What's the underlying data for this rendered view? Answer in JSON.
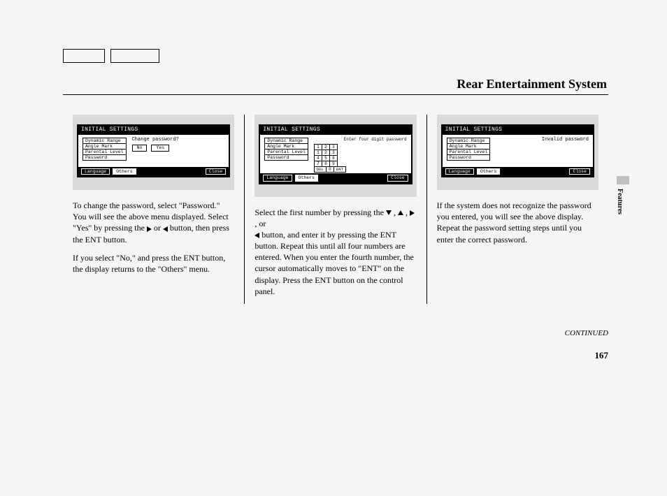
{
  "header": {
    "title": "Rear Entertainment System"
  },
  "side": {
    "label": "Features"
  },
  "footer": {
    "continued": "CONTINUED",
    "page": "167"
  },
  "screens": {
    "header_label": "INITIAL SETTINGS",
    "menu_items": [
      "Dynamic Range",
      "Angle Mark",
      "Parental Level",
      "Password"
    ],
    "footer_tabs": {
      "lang": "Language",
      "others": "Others",
      "close": "Close"
    },
    "s1": {
      "prompt": "Change password?",
      "no": "No",
      "yes": "Yes"
    },
    "s2": {
      "prompt": "Enter four digit password",
      "keypad": [
        [
          "1",
          "2",
          "3"
        ],
        [
          "1",
          "2",
          "3"
        ],
        [
          "4",
          "5",
          "6"
        ],
        [
          "7",
          "8",
          "9"
        ]
      ],
      "bottom": [
        "DEL",
        "0",
        "ENT"
      ]
    },
    "s3": {
      "prompt": "Invalid password"
    }
  },
  "text": {
    "c1p1a": "To change the password, select \"Password.\" You will see the above menu displayed. Select \"Yes\" by pressing the ",
    "c1p1b": " or ",
    "c1p1c": " button, then press the ENT button.",
    "c1p2": "If you select \"No,\" and press the ENT button, the display returns to the \"Others\" menu.",
    "c2p1a": "Select the first number by pressing the ",
    "c2p1b": " , ",
    "c2p1c": " , ",
    "c2p1d": " , or ",
    "c2p1e": " button, and enter it by pressing the ENT button. Repeat this until all four numbers are entered. When you enter the fourth number, the cursor automatically moves to \"ENT\" on the display. Press the ENT button on the control panel.",
    "c3p1": "If the system does not recognize the password you entered, you will see the above display. Repeat the password setting steps until you enter the correct password."
  }
}
